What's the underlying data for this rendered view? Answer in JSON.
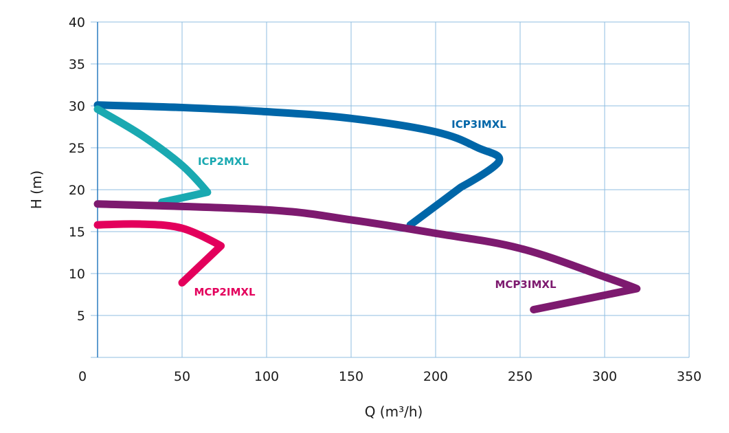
{
  "chart_data": {
    "type": "line",
    "title": "",
    "xlabel": "Q (m³/h)",
    "ylabel": "H (m)",
    "xlim": [
      0,
      350
    ],
    "ylim": [
      0,
      40
    ],
    "x_ticks": [
      "0",
      "50",
      "100",
      "150",
      "200",
      "250",
      "300",
      "350"
    ],
    "y_ticks": [
      "5",
      "10",
      "15",
      "20",
      "25",
      "30",
      "35",
      "40"
    ],
    "grid": true,
    "legend": "none (labels placed beside curves)",
    "series": [
      {
        "name": "ICP3IMXL",
        "color": "#0066a8",
        "points": [
          [
            0,
            30.1
          ],
          [
            50,
            29.8
          ],
          [
            100,
            29.3
          ],
          [
            150,
            28.5
          ],
          [
            200,
            26.9
          ],
          [
            225,
            25.0
          ],
          [
            237.5,
            23.4
          ],
          [
            215,
            20.3
          ],
          [
            185,
            15.8
          ]
        ]
      },
      {
        "name": "ICP2MXL",
        "color": "#1aa9b1",
        "points": [
          [
            0,
            29.6
          ],
          [
            26,
            26.5
          ],
          [
            50,
            22.9
          ],
          [
            65,
            19.7
          ],
          [
            38,
            18.5
          ]
        ]
      },
      {
        "name": "MCP3IMXL",
        "color": "#7d1a6f",
        "points": [
          [
            0,
            18.3
          ],
          [
            100,
            17.6
          ],
          [
            150,
            16.4
          ],
          [
            200,
            14.8
          ],
          [
            250,
            13.0
          ],
          [
            300,
            9.6
          ],
          [
            319,
            8.2
          ],
          [
            258,
            5.7
          ]
        ]
      },
      {
        "name": "MCP2IMXL",
        "color": "#e3005c",
        "points": [
          [
            0,
            15.8
          ],
          [
            25,
            15.9
          ],
          [
            50,
            15.4
          ],
          [
            73,
            13.3
          ],
          [
            50,
            8.9
          ]
        ]
      }
    ]
  }
}
